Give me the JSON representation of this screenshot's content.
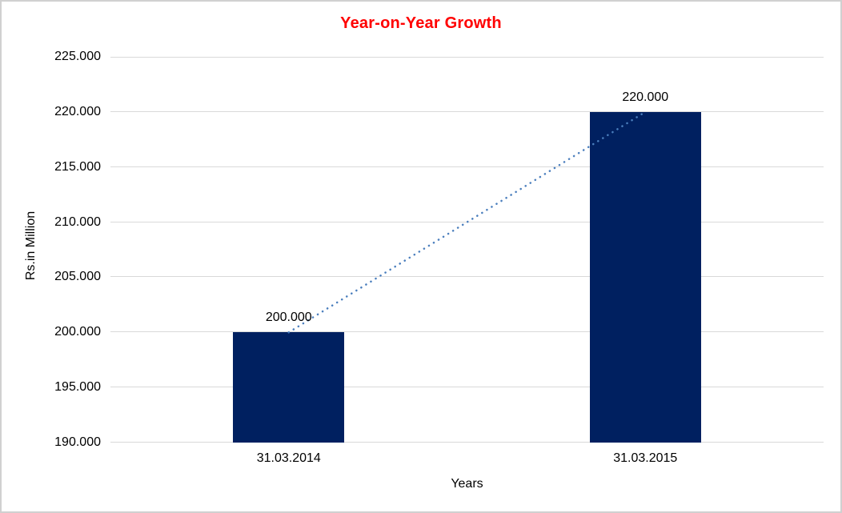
{
  "chart_data": {
    "type": "bar",
    "title": "Year-on-Year Growth",
    "xlabel": "Years",
    "ylabel": "Rs.in Million",
    "categories": [
      "31.03.2014",
      "31.03.2015"
    ],
    "values": [
      200000,
      220000
    ],
    "value_labels": [
      "200.000",
      "220.000"
    ],
    "ylim": [
      190000,
      225000
    ],
    "ytick_step": 5000,
    "ytick_labels": [
      "190.000",
      "195.000",
      "200.000",
      "205.000",
      "210.000",
      "215.000",
      "220.000",
      "225.000"
    ],
    "grid": true,
    "legend": "none",
    "trendline": {
      "type": "linear",
      "style": "dotted",
      "connects": [
        "200.000",
        "220.000"
      ]
    }
  },
  "colors": {
    "bar": "#002060",
    "trendline": "#4A7EBD",
    "title": "#FF0000",
    "gridline": "#D9D9D9",
    "border": "#D0D0D0",
    "background": "#FFFFFF",
    "text": "#000000"
  }
}
